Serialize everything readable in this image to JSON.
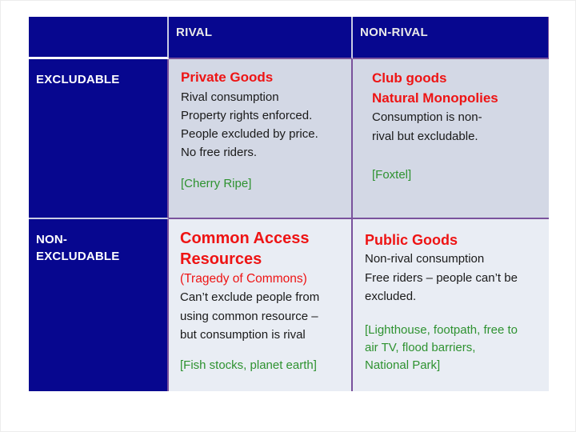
{
  "matrix": {
    "column_headers": [
      "",
      "RIVAL",
      "NON-RIVAL"
    ],
    "row_headers": [
      "EXCLUDABLE",
      "NON-EXCLUDABLE"
    ],
    "cells": {
      "excludable_rival": {
        "title": "Private Goods",
        "body_lines": [
          "Rival consumption",
          "Property rights enforced.",
          "People excluded by price.",
          "No free riders."
        ],
        "example": "[Cherry Ripe]"
      },
      "excludable_nonrival": {
        "title_lines": [
          "Club goods",
          "Natural Monopolies"
        ],
        "body": "Consumption is non-rival but excludable.",
        "example": "[Foxtel]"
      },
      "nonexcludable_rival": {
        "title": "Common Access Resources",
        "subtitle": "(Tragedy of Commons)",
        "body": "Can’t exclude people from using common resource – but consumption is rival",
        "example": "[Fish stocks, planet earth]"
      },
      "nonexcludable_nonrival": {
        "title": "Public Goods",
        "body_lines": [
          "Non-rival consumption",
          "Free riders – people can’t be excluded."
        ],
        "example": "[Lighthouse, footpath, free to air TV, flood barriers, National Park]"
      }
    }
  },
  "colors": {
    "header_bg": "#07078F",
    "cell_bg_top": "#D3D8E5",
    "cell_bg_bottom": "#E9EDF4",
    "border_purple": "#7A529C",
    "border_light": "#C9CCE3",
    "header_sep_white": "#FFFFFF",
    "title_red": "#EE1414",
    "example_green": "#2E9230",
    "body_text": "#1A1A1A",
    "header_text": "#E9E9E9",
    "row_label_text": "#FFFFFF"
  }
}
